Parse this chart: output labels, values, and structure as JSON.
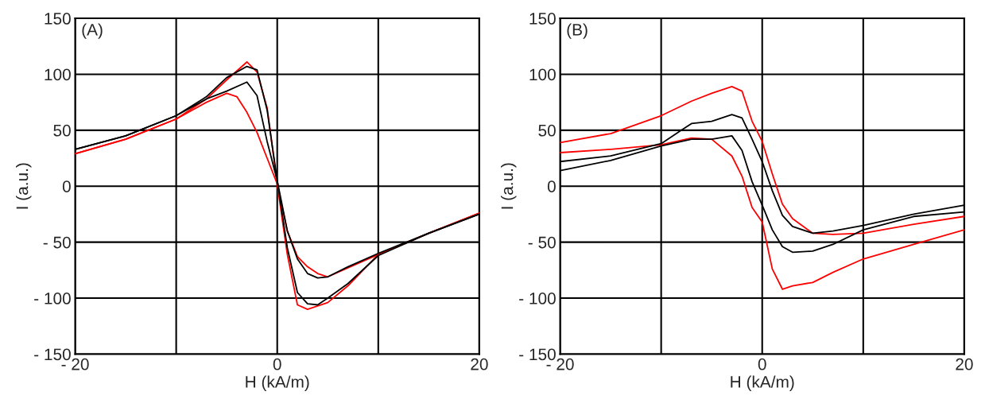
{
  "chart_data": [
    {
      "type": "line",
      "annotations": [
        "(A)"
      ],
      "xlabel": "H (kA/m)",
      "ylabel": "I (a.u.)",
      "xlim": [
        -20,
        20
      ],
      "ylim": [
        -150,
        150
      ],
      "xticks": [
        {
          "value": -20,
          "label": "- 20"
        },
        {
          "value": -10,
          "label": null
        },
        0,
        {
          "value": 10,
          "label": null
        },
        20
      ],
      "yticks": [
        {
          "value": -150,
          "label": "- 150"
        },
        {
          "value": -100,
          "label": "- 100"
        },
        {
          "value": -50,
          "label": "- 50"
        },
        0,
        50,
        100,
        150
      ],
      "grid": true,
      "marker": "none",
      "line_style": "solid",
      "series": [
        {
          "color": "#ff0000",
          "x": [
            -20,
            -15,
            -10,
            -7,
            -5,
            -3,
            -2,
            -1,
            0,
            0.5,
            1,
            2,
            3,
            5,
            7,
            10,
            15,
            20
          ],
          "values": [
            29,
            42,
            60,
            78,
            95,
            111,
            102,
            70,
            2,
            -30,
            -61,
            -106,
            -110,
            -104,
            -89,
            -61,
            -42,
            -24
          ]
        },
        {
          "color": "#ff0000",
          "x": [
            -20,
            -15,
            -10,
            -7,
            -5,
            -4,
            -3,
            -2,
            -1,
            0,
            1,
            2,
            3,
            4,
            5,
            7,
            10,
            15,
            20
          ],
          "values": [
            29,
            42,
            60,
            75,
            83,
            80,
            66,
            48,
            25,
            2,
            -40,
            -63,
            -72,
            -78,
            -81,
            -73,
            -61,
            -42,
            -24
          ]
        },
        {
          "color": "#000000",
          "x": [
            -20,
            -15,
            -10,
            -7,
            -5,
            -3,
            -2,
            -1,
            0,
            1,
            2,
            3,
            4,
            5,
            7,
            10,
            15,
            20
          ],
          "values": [
            33,
            45,
            63,
            80,
            97,
            107,
            104,
            68,
            5,
            -55,
            -95,
            -105,
            -106,
            -100,
            -87,
            -62,
            -42,
            -25
          ]
        },
        {
          "color": "#000000",
          "x": [
            -20,
            -15,
            -10,
            -7,
            -5,
            -3,
            -2,
            -1,
            0,
            1,
            2,
            3,
            4,
            5,
            7,
            10,
            15,
            20
          ],
          "values": [
            33,
            45,
            63,
            78,
            85,
            93,
            81,
            40,
            5,
            -40,
            -65,
            -78,
            -82,
            -81,
            -72,
            -60,
            -42,
            -25
          ]
        }
      ]
    },
    {
      "type": "line",
      "annotations": [
        "(B)"
      ],
      "xlabel": "H (kA/m)",
      "ylabel": "I (a.u.)",
      "xlim": [
        -20,
        20
      ],
      "ylim": [
        -150,
        150
      ],
      "xticks": [
        {
          "value": -20,
          "label": "- 20"
        },
        {
          "value": -10,
          "label": null
        },
        0,
        {
          "value": 10,
          "label": null
        },
        20
      ],
      "yticks": [
        {
          "value": -150,
          "label": "- 150"
        },
        {
          "value": -100,
          "label": "- 100"
        },
        {
          "value": -50,
          "label": "- 50"
        },
        0,
        50,
        100,
        150
      ],
      "grid": true,
      "marker": "none",
      "line_style": "solid",
      "series": [
        {
          "color": "#ff0000",
          "x": [
            -20,
            -15,
            -10,
            -7,
            -5,
            -3,
            -2,
            -1,
            0,
            1,
            2,
            3,
            5,
            7,
            10,
            15,
            20
          ],
          "values": [
            39,
            47,
            63,
            76,
            83,
            89,
            85,
            58,
            40,
            11,
            -16,
            -29,
            -42,
            -43,
            -42,
            -34,
            -27
          ]
        },
        {
          "color": "#ff0000",
          "x": [
            -20,
            -15,
            -10,
            -7,
            -5,
            -3,
            -2,
            -1,
            0,
            1,
            2,
            3,
            5,
            7,
            10,
            15,
            20
          ],
          "values": [
            30,
            33,
            37,
            43,
            42,
            27,
            9,
            -19,
            -32,
            -74,
            -92,
            -89,
            -86,
            -77,
            -65,
            -52,
            -39
          ]
        },
        {
          "color": "#000000",
          "x": [
            -20,
            -15,
            -10,
            -8,
            -7,
            -5,
            -3,
            -2,
            -1,
            0,
            1,
            2,
            3,
            5,
            7,
            10,
            15,
            20
          ],
          "values": [
            22,
            27,
            38,
            50,
            56,
            58,
            64,
            61,
            42,
            22,
            -4,
            -26,
            -36,
            -42,
            -40,
            -35,
            -25,
            -17
          ]
        },
        {
          "color": "#000000",
          "x": [
            -20,
            -15,
            -10,
            -7,
            -5,
            -3,
            -2,
            -1,
            0,
            1,
            2,
            3,
            5,
            7,
            10,
            15,
            20
          ],
          "values": [
            14,
            23,
            36,
            42,
            42,
            45,
            32,
            4,
            -17,
            -39,
            -54,
            -59,
            -58,
            -52,
            -39,
            -27,
            -23
          ]
        }
      ]
    }
  ]
}
